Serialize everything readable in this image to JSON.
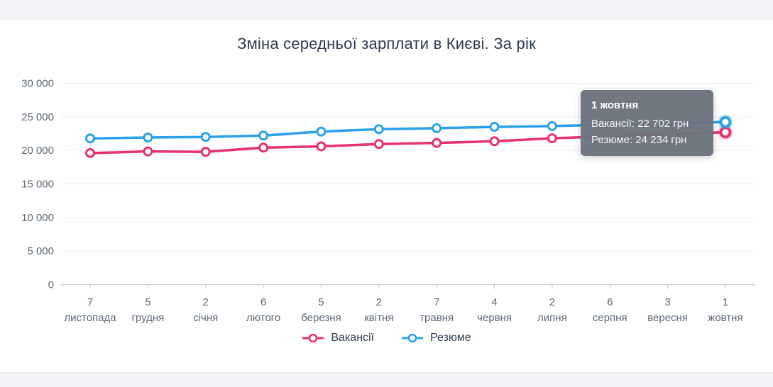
{
  "chart_data": {
    "type": "line",
    "title": "Зміна середньої зарплати в Києві. За рік",
    "ylim": [
      0,
      30000
    ],
    "grid": "horizontal",
    "legend_position": "bottom",
    "currency": "грн",
    "y_ticks": [
      "30 000",
      "25 000",
      "20 000",
      "15 000",
      "10 000",
      "5 000",
      "0"
    ],
    "x_ticks": [
      {
        "day": "7",
        "month": "листопада"
      },
      {
        "day": "5",
        "month": "грудня"
      },
      {
        "day": "2",
        "month": "січня"
      },
      {
        "day": "6",
        "month": "лютого"
      },
      {
        "day": "5",
        "month": "березня"
      },
      {
        "day": "2",
        "month": "квітня"
      },
      {
        "day": "7",
        "month": "травня"
      },
      {
        "day": "4",
        "month": "червня"
      },
      {
        "day": "2",
        "month": "липня"
      },
      {
        "day": "6",
        "month": "серпня"
      },
      {
        "day": "3",
        "month": "вересня"
      },
      {
        "day": "1",
        "month": "жовтня"
      }
    ],
    "series": [
      {
        "name": "Вакансії",
        "color": "#e5326e",
        "values": [
          19600,
          19840,
          19780,
          20410,
          20600,
          20940,
          21110,
          21360,
          21800,
          22100,
          22400,
          22702
        ]
      },
      {
        "name": "Резюме",
        "color": "#29a2e8",
        "values": [
          21780,
          21920,
          22000,
          22210,
          22800,
          23160,
          23300,
          23510,
          23620,
          23830,
          24040,
          24234
        ]
      }
    ],
    "highlighted_index": 11,
    "tooltip": {
      "title": "1 жовтня",
      "rows": [
        "Вакансії: 22 702 грн",
        "Резюме: 24 234 грн"
      ]
    }
  }
}
